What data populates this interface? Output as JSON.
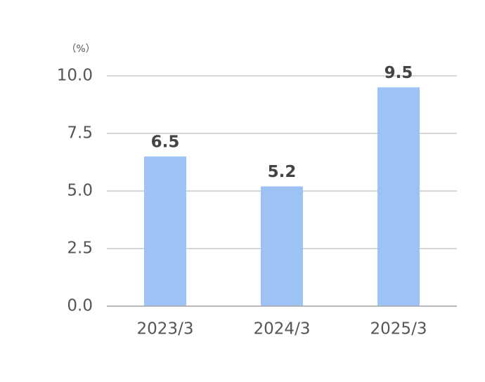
{
  "chart_data": {
    "type": "bar",
    "unit_label": "（%）",
    "categories": [
      "2023/3",
      "2024/3",
      "2025/3"
    ],
    "values": [
      6.5,
      5.2,
      9.5
    ],
    "color": "#9dc3f5",
    "ylim": [
      0,
      10
    ],
    "yticks": [
      {
        "value": 0,
        "label": "0.0"
      },
      2.5,
      {
        "value": 5,
        "label": "5.0"
      },
      7.5,
      {
        "value": 10,
        "label": "10.0"
      }
    ],
    "grid": true
  }
}
